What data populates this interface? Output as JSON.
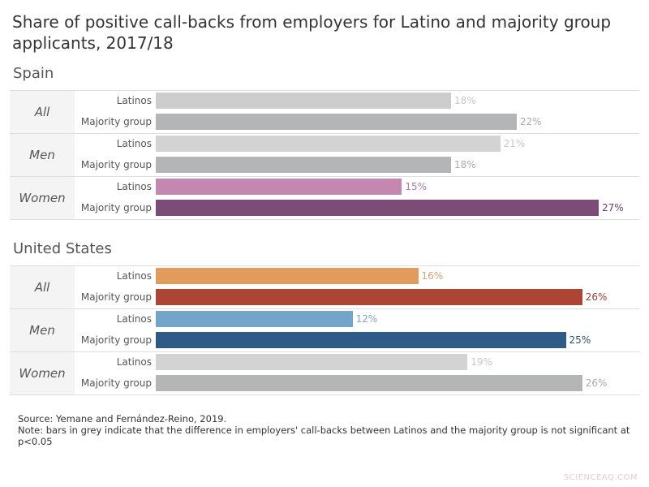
{
  "chart_data": {
    "type": "bar",
    "orientation": "horizontal",
    "title": "Share of positive call-backs from employers for Latino and majority group applicants, 2017/18",
    "unit": "%",
    "panels": [
      {
        "country": "Spain",
        "groups": [
          {
            "category": "All",
            "bars": [
              {
                "label": "Latinos",
                "value": 18,
                "color": "#cdcdcd",
                "label_color": "#c8c8c8"
              },
              {
                "label": "Majority group",
                "value": 22,
                "color": "#b3b5b7",
                "label_color": "#a9abad"
              }
            ]
          },
          {
            "category": "Men",
            "bars": [
              {
                "label": "Latinos",
                "value": 21,
                "color": "#d3d3d3",
                "label_color": "#c8c8c8"
              },
              {
                "label": "Majority group",
                "value": 18,
                "color": "#b3b5b7",
                "label_color": "#a9abad"
              }
            ]
          },
          {
            "category": "Women",
            "bars": [
              {
                "label": "Latinos",
                "value": 15,
                "color": "#c387b0",
                "label_color": "#b07aa0"
              },
              {
                "label": "Majority group",
                "value": 27,
                "color": "#7c4b78",
                "label_color": "#6a4066"
              }
            ]
          }
        ]
      },
      {
        "country": "United States",
        "groups": [
          {
            "category": "All",
            "bars": [
              {
                "label": "Latinos",
                "value": 16,
                "color": "#e19c5c",
                "label_color": "#d8a070"
              },
              {
                "label": "Majority group",
                "value": 26,
                "color": "#ad4535",
                "label_color": "#9a3e30"
              }
            ]
          },
          {
            "category": "Men",
            "bars": [
              {
                "label": "Latinos",
                "value": 12,
                "color": "#72a5c9",
                "label_color": "#7ea8c6"
              },
              {
                "label": "Majority group",
                "value": 25,
                "color": "#2e5b88",
                "label_color": "#2e4f73"
              }
            ]
          },
          {
            "category": "Women",
            "bars": [
              {
                "label": "Latinos",
                "value": 19,
                "color": "#d3d3d3",
                "label_color": "#c8c8c8"
              },
              {
                "label": "Majority group",
                "value": 26,
                "color": "#b3b5b7",
                "label_color": "#a9abad"
              }
            ]
          }
        ]
      }
    ],
    "xlim": [
      0,
      27
    ]
  },
  "notes": {
    "source": "Source: Yemane and Fernández-Reino, 2019.",
    "note": "Note: bars in grey indicate that the difference in employers' call-backs between Latinos and the majority group is not significant at p<0.05"
  },
  "watermark": "SCIENCEAQ.COM"
}
